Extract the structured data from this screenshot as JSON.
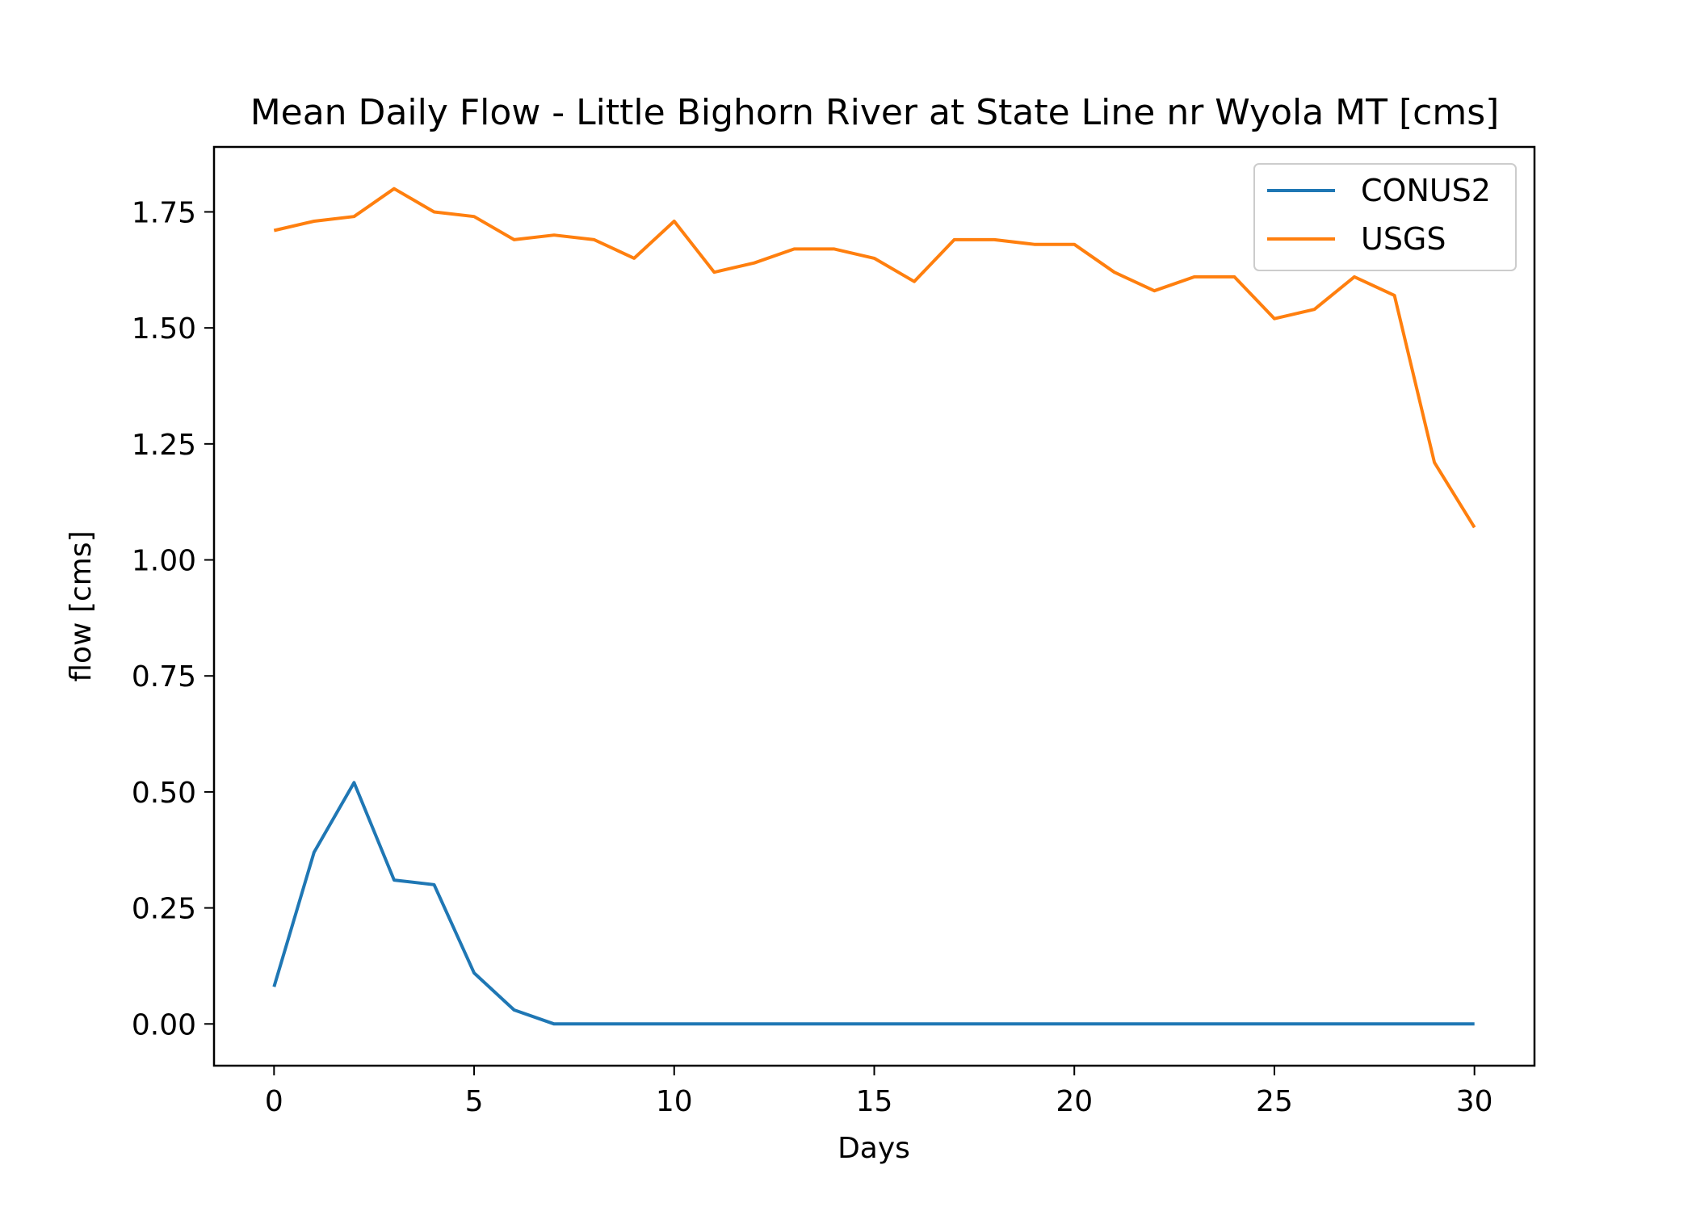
{
  "chart_data": {
    "type": "line",
    "title": "Mean Daily Flow - Little Bighorn River at State Line nr Wyola MT [cms]",
    "xlabel": "Days",
    "ylabel": "flow [cms]",
    "xlim": [
      -1.5,
      31.5
    ],
    "ylim": [
      -0.09,
      1.89
    ],
    "xticks": [
      0,
      5,
      10,
      15,
      20,
      25,
      30
    ],
    "yticks": [
      0.0,
      0.25,
      0.5,
      0.75,
      1.0,
      1.25,
      1.5,
      1.75
    ],
    "ytick_labels": [
      "0.00",
      "0.25",
      "0.50",
      "0.75",
      "1.00",
      "1.25",
      "1.50",
      "1.75"
    ],
    "legend": "top-right",
    "grid": false,
    "x": [
      0,
      1,
      2,
      3,
      4,
      5,
      6,
      7,
      8,
      9,
      10,
      11,
      12,
      13,
      14,
      15,
      16,
      17,
      18,
      19,
      20,
      21,
      22,
      23,
      24,
      25,
      26,
      27,
      28,
      29,
      30
    ],
    "series": [
      {
        "name": "CONUS2",
        "color": "#1f77b4",
        "values": [
          0.08,
          0.37,
          0.52,
          0.31,
          0.3,
          0.11,
          0.03,
          0.0,
          0.0,
          0.0,
          0.0,
          0.0,
          0.0,
          0.0,
          0.0,
          0.0,
          0.0,
          0.0,
          0.0,
          0.0,
          0.0,
          0.0,
          0.0,
          0.0,
          0.0,
          0.0,
          0.0,
          0.0,
          0.0,
          0.0,
          0.0
        ]
      },
      {
        "name": "USGS",
        "color": "#ff7f0e",
        "values": [
          1.71,
          1.73,
          1.74,
          1.8,
          1.75,
          1.74,
          1.69,
          1.7,
          1.69,
          1.65,
          1.73,
          1.62,
          1.64,
          1.67,
          1.67,
          1.65,
          1.6,
          1.69,
          1.69,
          1.68,
          1.68,
          1.62,
          1.58,
          1.61,
          1.61,
          1.52,
          1.54,
          1.61,
          1.57,
          1.21,
          1.07
        ]
      }
    ]
  }
}
